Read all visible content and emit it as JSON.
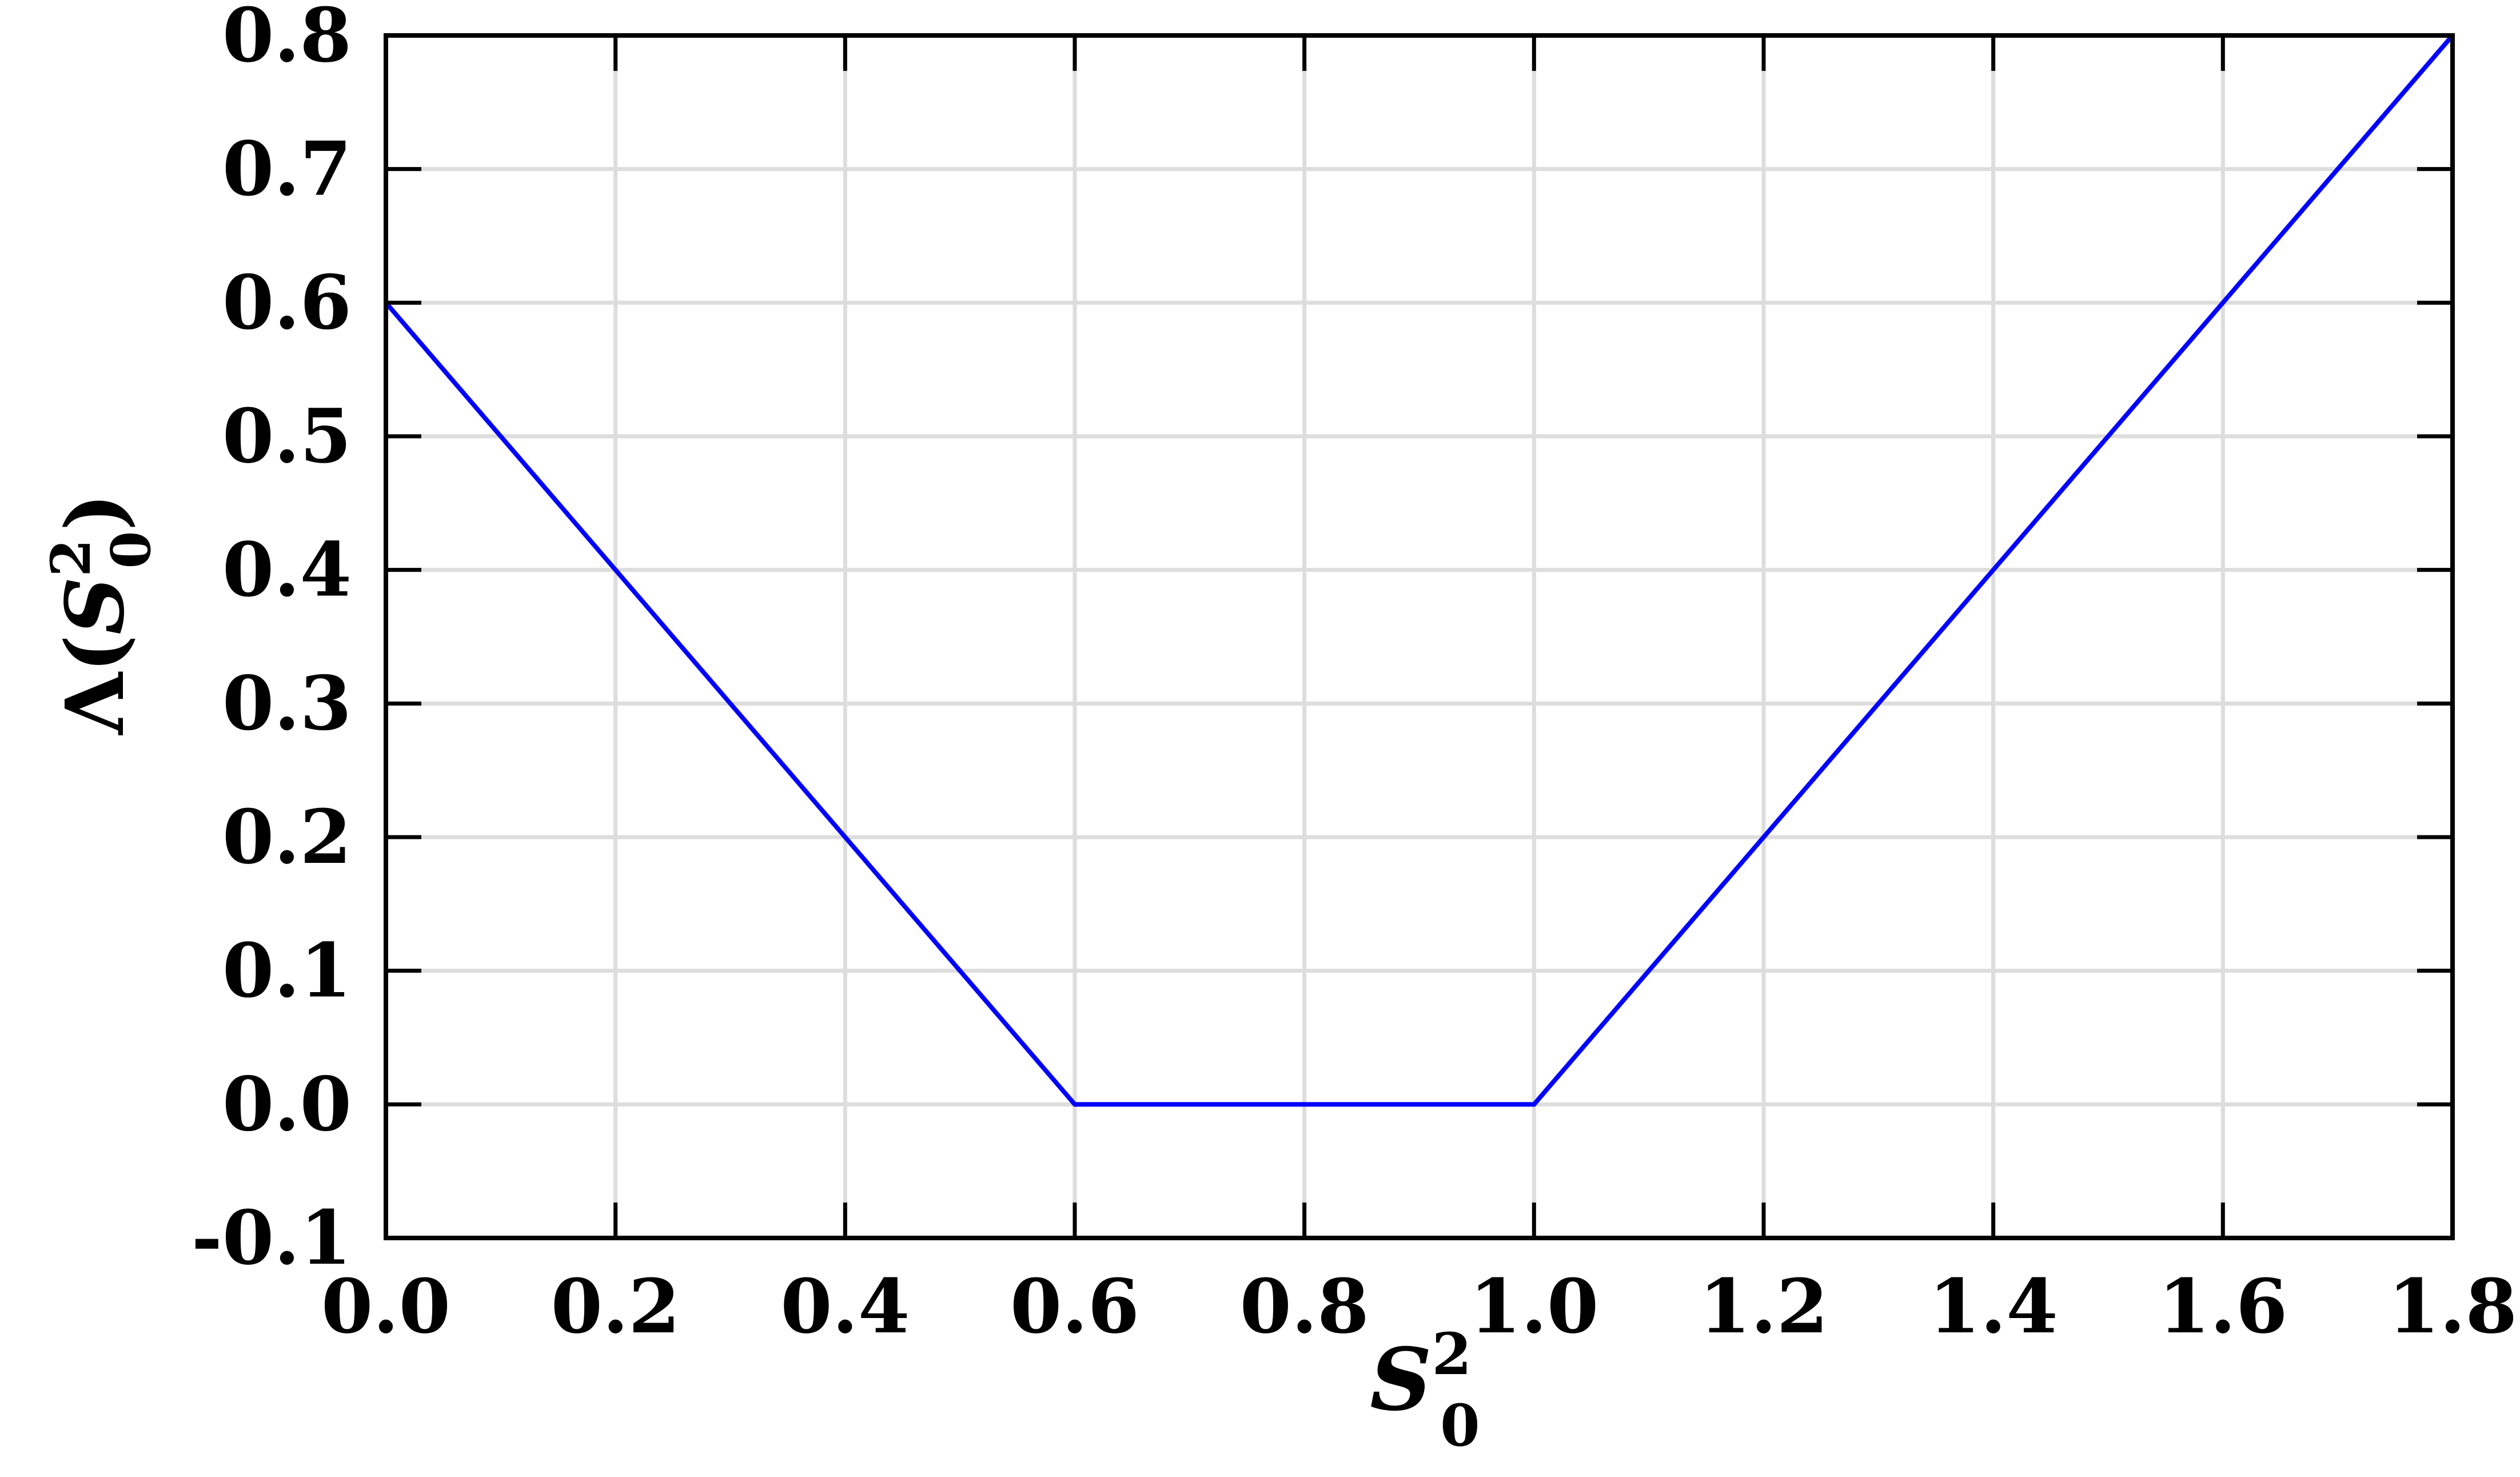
{
  "chart_data": {
    "type": "line",
    "title": "",
    "xlabel": {
      "base": "S",
      "sup": "2",
      "sub": "0"
    },
    "ylabel": {
      "prefix": "Λ(",
      "base": "S",
      "sup": "2",
      "sub": "0",
      "suffix": ")"
    },
    "xlim": [
      0.0,
      1.8
    ],
    "ylim": [
      -0.1,
      0.8
    ],
    "xticks": [
      "0.0",
      "0.2",
      "0.4",
      "0.6",
      "0.8",
      "1.0",
      "1.2",
      "1.4",
      "1.6",
      "1.8"
    ],
    "yticks": [
      "-0.1",
      "0.0",
      "0.1",
      "0.2",
      "0.3",
      "0.4",
      "0.5",
      "0.6",
      "0.7",
      "0.8"
    ],
    "grid": true,
    "colors": {
      "line": "#0000ff",
      "grid": "#dddddd",
      "axes": "#000000"
    },
    "series": [
      {
        "x": [
          0.0,
          0.6,
          1.0,
          1.8
        ],
        "y": [
          0.6,
          0.0,
          0.0,
          0.8
        ]
      }
    ]
  }
}
